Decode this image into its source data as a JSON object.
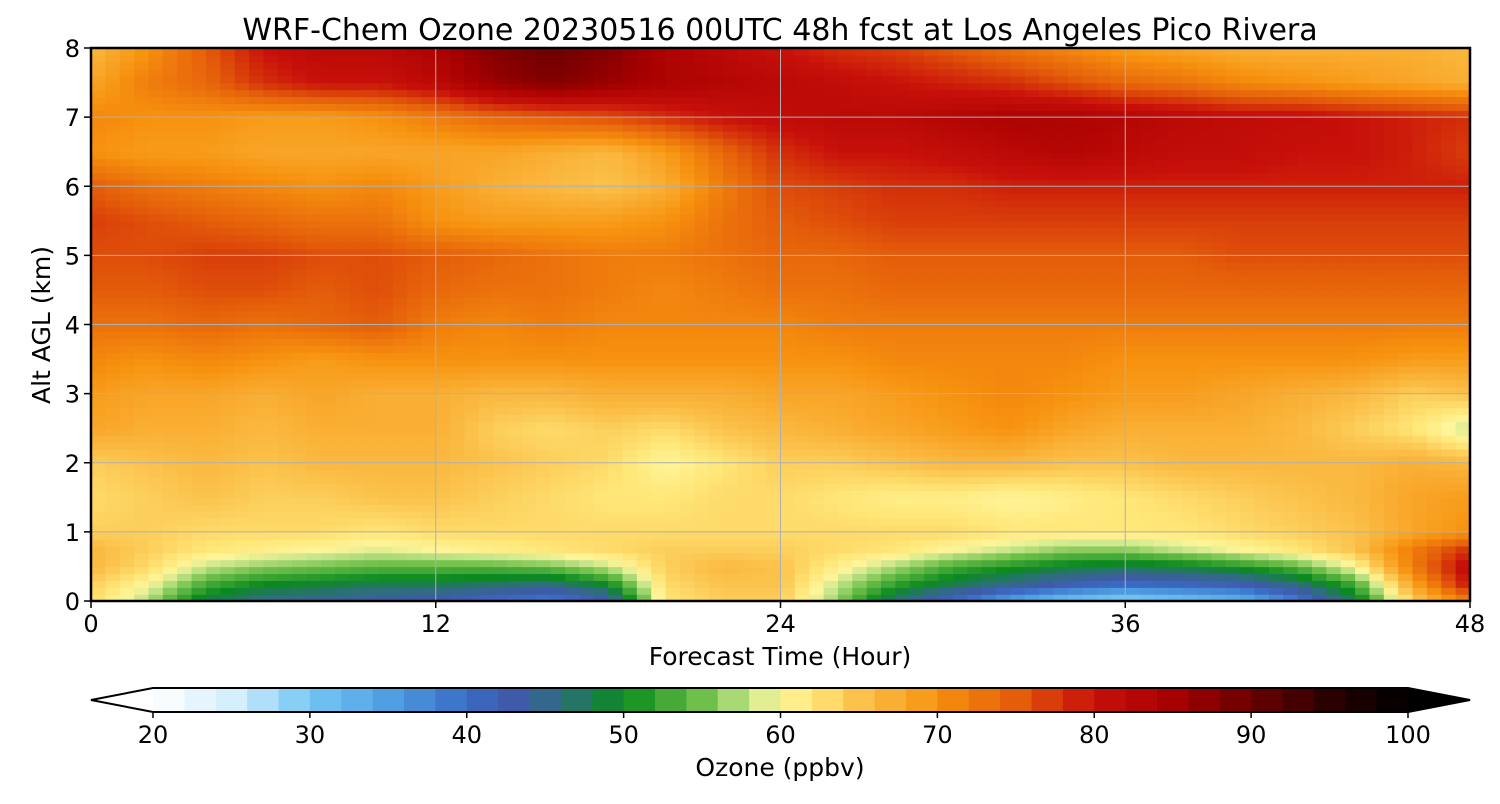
{
  "chart_data": {
    "type": "heatmap",
    "title": "WRF-Chem Ozone  20230516 00UTC 48h fcst at Los Angeles Pico Rivera",
    "xlabel": "Forecast Time (Hour)",
    "ylabel": "Alt AGL (km)",
    "xlim": [
      0,
      48
    ],
    "ylim": [
      0,
      8
    ],
    "x_ticks": [
      "0",
      "12",
      "24",
      "36",
      "48"
    ],
    "y_ticks": [
      "0",
      "1",
      "2",
      "3",
      "4",
      "5",
      "6",
      "7",
      "8"
    ],
    "grid": true,
    "colorbar": {
      "label": "Ozone  (ppbv)",
      "range": [
        20,
        100
      ],
      "ticks": [
        "20",
        "30",
        "40",
        "50",
        "60",
        "70",
        "80",
        "90",
        "100"
      ],
      "extend": "both",
      "stops": [
        {
          "v": 20,
          "c": "#ffffff"
        },
        {
          "v": 25,
          "c": "#d6effc"
        },
        {
          "v": 30,
          "c": "#74c7f4"
        },
        {
          "v": 35,
          "c": "#4fa0e3"
        },
        {
          "v": 40,
          "c": "#3a6bc6"
        },
        {
          "v": 43,
          "c": "#3f5aa8"
        },
        {
          "v": 46,
          "c": "#2e6e7e"
        },
        {
          "v": 50,
          "c": "#0a8a1e"
        },
        {
          "v": 55,
          "c": "#6fc04a"
        },
        {
          "v": 58,
          "c": "#c6e58a"
        },
        {
          "v": 60,
          "c": "#fff59a"
        },
        {
          "v": 62,
          "c": "#ffe779"
        },
        {
          "v": 65,
          "c": "#fbc24c"
        },
        {
          "v": 70,
          "c": "#f7920f"
        },
        {
          "v": 75,
          "c": "#e45d0a"
        },
        {
          "v": 80,
          "c": "#c8100a"
        },
        {
          "v": 85,
          "c": "#a60000"
        },
        {
          "v": 90,
          "c": "#6a0000"
        },
        {
          "v": 95,
          "c": "#2a0000"
        },
        {
          "v": 100,
          "c": "#000000"
        }
      ]
    },
    "x": [
      0,
      2,
      4,
      6,
      8,
      10,
      12,
      14,
      16,
      18,
      20,
      22,
      24,
      26,
      28,
      30,
      32,
      34,
      36,
      38,
      40,
      42,
      44,
      46,
      48
    ],
    "y": [
      0,
      0.25,
      0.5,
      0.75,
      1,
      1.5,
      2,
      2.5,
      3,
      3.5,
      4,
      4.5,
      5,
      5.5,
      6,
      6.5,
      7,
      7.5,
      8
    ],
    "z": [
      [
        63,
        57,
        48,
        45,
        44,
        43,
        42,
        40,
        38,
        42,
        62,
        64,
        64,
        56,
        46,
        40,
        34,
        30,
        28,
        30,
        32,
        38,
        48,
        64,
        72
      ],
      [
        64,
        60,
        53,
        50,
        49,
        48,
        48,
        47,
        46,
        50,
        63,
        65,
        65,
        58,
        52,
        48,
        45,
        42,
        40,
        41,
        42,
        46,
        53,
        68,
        80
      ],
      [
        66,
        63,
        58,
        56,
        55,
        54,
        54,
        54,
        55,
        58,
        64,
        66,
        65,
        61,
        57,
        53,
        51,
        49,
        48,
        49,
        51,
        54,
        60,
        72,
        82
      ],
      [
        66,
        64,
        62,
        61,
        60,
        59,
        60,
        61,
        62,
        63,
        64,
        64,
        64,
        63,
        62,
        60,
        58,
        56,
        56,
        58,
        60,
        62,
        65,
        72,
        78
      ],
      [
        64,
        64,
        63,
        63,
        63,
        62,
        63,
        63,
        63,
        63,
        63,
        63,
        63,
        63,
        63,
        63,
        62,
        62,
        62,
        62,
        63,
        64,
        65,
        68,
        70
      ],
      [
        63,
        64,
        65,
        64,
        64,
        65,
        65,
        64,
        63,
        62,
        62,
        63,
        63,
        62,
        61,
        61,
        60,
        61,
        62,
        63,
        64,
        65,
        66,
        68,
        69
      ],
      [
        64,
        65,
        66,
        65,
        66,
        66,
        66,
        65,
        64,
        63,
        60,
        62,
        64,
        64,
        65,
        66,
        66,
        65,
        65,
        66,
        66,
        66,
        66,
        67,
        66
      ],
      [
        68,
        67,
        67,
        66,
        67,
        67,
        67,
        64,
        63,
        64,
        63,
        65,
        66,
        67,
        68,
        69,
        70,
        68,
        67,
        67,
        67,
        66,
        64,
        62,
        58
      ],
      [
        69,
        68,
        68,
        67,
        68,
        67,
        67,
        66,
        66,
        67,
        67,
        67,
        68,
        68,
        69,
        70,
        71,
        70,
        69,
        69,
        68,
        67,
        66,
        64,
        65
      ],
      [
        71,
        70,
        71,
        70,
        69,
        70,
        70,
        70,
        70,
        70,
        70,
        70,
        70,
        70,
        71,
        71,
        71,
        71,
        70,
        70,
        70,
        70,
        70,
        69,
        69
      ],
      [
        73,
        73,
        74,
        73,
        74,
        75,
        72,
        71,
        72,
        71,
        71,
        71,
        71,
        72,
        72,
        72,
        72,
        72,
        72,
        72,
        72,
        72,
        72,
        72,
        72
      ],
      [
        75,
        75,
        76,
        76,
        75,
        76,
        74,
        73,
        73,
        72,
        71,
        72,
        73,
        73,
        74,
        74,
        74,
        74,
        74,
        74,
        74,
        74,
        74,
        74,
        74
      ],
      [
        76,
        76,
        77,
        77,
        76,
        76,
        75,
        74,
        73,
        72,
        72,
        73,
        74,
        74,
        75,
        75,
        75,
        75,
        75,
        75,
        76,
        76,
        76,
        76,
        76
      ],
      [
        77,
        76,
        75,
        74,
        73,
        73,
        70,
        69,
        69,
        69,
        70,
        73,
        75,
        76,
        77,
        77,
        77,
        77,
        77,
        77,
        77,
        77,
        77,
        77,
        77
      ],
      [
        75,
        73,
        72,
        71,
        70,
        71,
        69,
        67,
        66,
        65,
        67,
        72,
        76,
        77,
        78,
        78,
        79,
        79,
        79,
        79,
        79,
        79,
        79,
        79,
        79
      ],
      [
        70,
        69,
        69,
        68,
        68,
        68,
        68,
        68,
        67,
        66,
        69,
        74,
        78,
        80,
        80,
        81,
        82,
        83,
        82,
        81,
        81,
        80,
        80,
        79,
        77
      ],
      [
        71,
        70,
        70,
        69,
        69,
        70,
        72,
        74,
        75,
        76,
        78,
        80,
        81,
        82,
        82,
        83,
        84,
        84,
        83,
        82,
        81,
        81,
        80,
        79,
        78
      ],
      [
        68,
        72,
        74,
        78,
        80,
        80,
        82,
        86,
        88,
        86,
        84,
        83,
        82,
        81,
        80,
        79,
        78,
        76,
        74,
        73,
        71,
        70,
        69,
        68,
        67
      ],
      [
        66,
        70,
        75,
        80,
        82,
        82,
        84,
        88,
        90,
        88,
        84,
        82,
        80,
        78,
        77,
        75,
        73,
        71,
        69,
        68,
        67,
        67,
        67,
        67,
        66
      ]
    ]
  }
}
